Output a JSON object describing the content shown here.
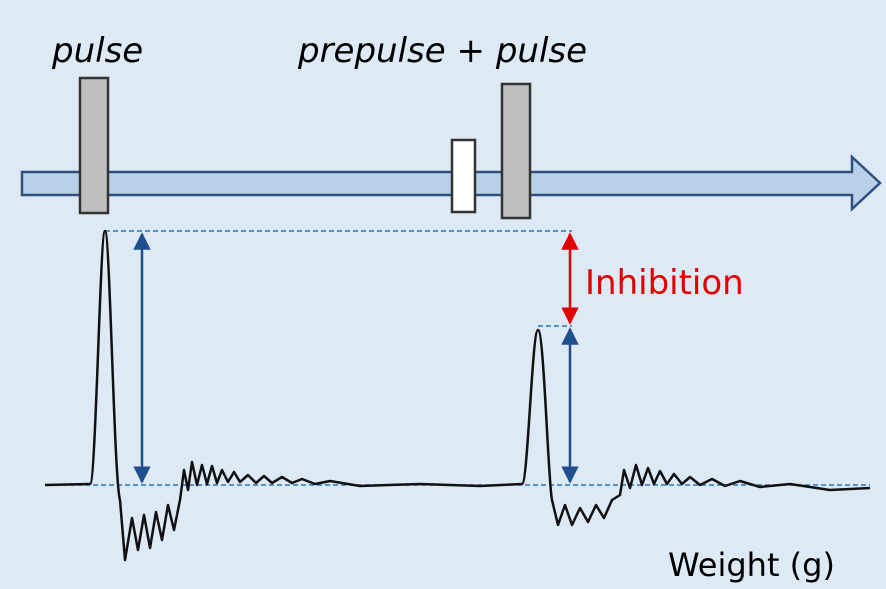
{
  "labels": {
    "pulse": "pulse",
    "prepulse_pulse": [
      "prepulse",
      "+",
      "pulse"
    ],
    "inhibition": "Inhibition",
    "weight": "Weight (g)"
  }
}
